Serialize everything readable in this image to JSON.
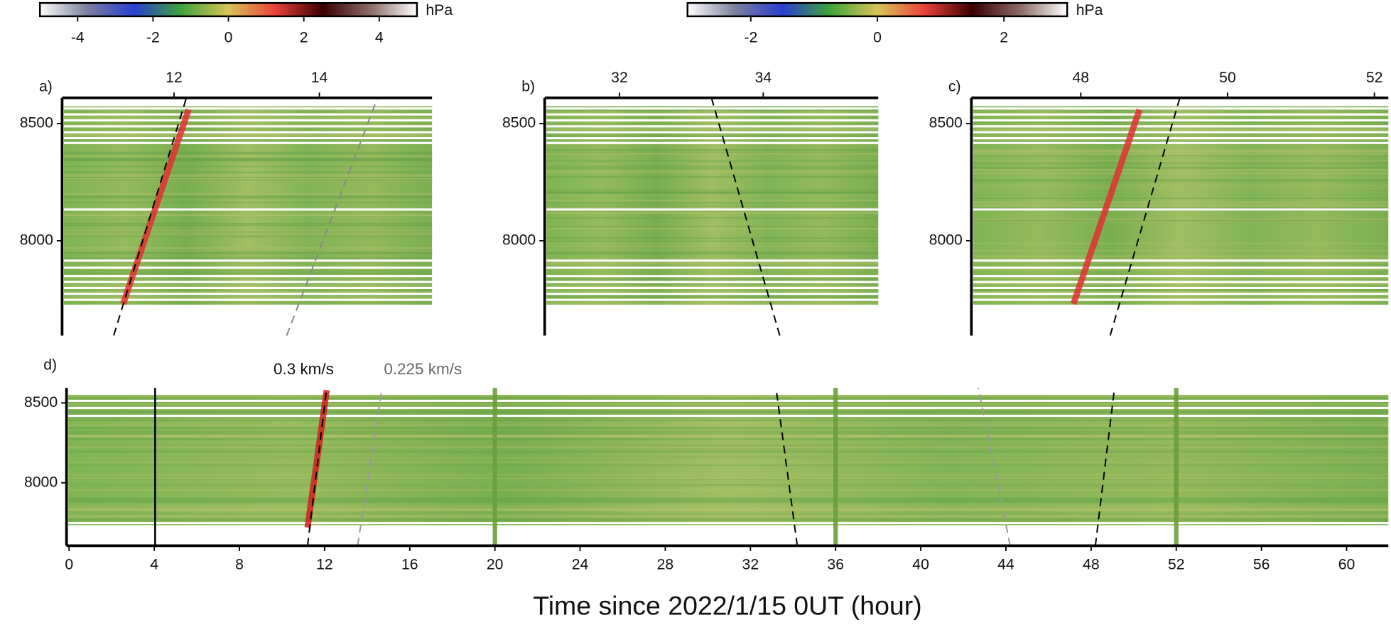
{
  "chart_data": [
    {
      "type": "colorbar",
      "unit": "hPa",
      "lim": [
        -5,
        5
      ],
      "ticks": [
        -4,
        -2,
        0,
        2,
        4
      ],
      "colors": [
        "#ffffff",
        "#7a7f9c",
        "#2a3fd0",
        "#3fa33a",
        "#d8c45a",
        "#e8403a",
        "#3a0000",
        "#8a6a64",
        "#ffffff"
      ]
    },
    {
      "type": "colorbar",
      "unit": "hPa",
      "lim": [
        -3,
        3
      ],
      "ticks": [
        -2,
        0,
        2
      ],
      "colors": [
        "#ffffff",
        "#7a7f9c",
        "#2a3fd0",
        "#3fa33a",
        "#d8c45a",
        "#e8403a",
        "#3a0000",
        "#8a6a64",
        "#ffffff"
      ]
    },
    {
      "type": "heatmap",
      "panel": "a)",
      "xlim": [
        10.46,
        15.55
      ],
      "xticks": [
        12,
        14
      ],
      "ylim": [
        7595,
        8610
      ],
      "yticks": [
        8500,
        8000
      ],
      "lines": [
        {
          "color": "#e03030",
          "style": "band",
          "x": [
            11.3,
            12.2
          ],
          "y": [
            7730,
            8560
          ]
        },
        {
          "color": "#000000",
          "style": "dashed",
          "x": [
            11.17,
            12.17
          ],
          "y": [
            7595,
            8610
          ]
        },
        {
          "color": "#888888",
          "style": "dashed",
          "x": [
            13.55,
            14.8
          ],
          "y": [
            7595,
            8610
          ]
        }
      ]
    },
    {
      "type": "heatmap",
      "panel": "b)",
      "xlim": [
        30.96,
        35.6
      ],
      "xticks": [
        32,
        34
      ],
      "ylim": [
        7595,
        8610
      ],
      "yticks": [
        8500,
        8000
      ],
      "lines": [
        {
          "color": "#000000",
          "style": "dashed",
          "x": [
            34.23,
            33.28
          ],
          "y": [
            7595,
            8610
          ]
        }
      ]
    },
    {
      "type": "heatmap",
      "panel": "c)",
      "xlim": [
        46.51,
        52.19
      ],
      "xticks": [
        48,
        50,
        52
      ],
      "ylim": [
        7595,
        8610
      ],
      "yticks": [
        8500,
        8000
      ],
      "lines": [
        {
          "color": "#e03030",
          "style": "band",
          "x": [
            47.9,
            48.8
          ],
          "y": [
            7730,
            8560
          ]
        },
        {
          "color": "#000000",
          "style": "dashed",
          "x": [
            48.4,
            49.35
          ],
          "y": [
            7595,
            8610
          ]
        }
      ]
    },
    {
      "type": "heatmap",
      "panel": "d)",
      "xlim": [
        -0.12,
        61.96
      ],
      "xticks": [
        0,
        4,
        8,
        12,
        16,
        20,
        24,
        28,
        32,
        36,
        40,
        44,
        48,
        52,
        56,
        60
      ],
      "ylim": [
        7606,
        8594
      ],
      "yticks": [
        8500,
        8000
      ],
      "xlabel": "Time since 2022/1/15 0UT (hour)",
      "annotations": [
        "0.3 km/s",
        "0.225 km/s"
      ],
      "lines": [
        {
          "color": "#000000",
          "style": "solid",
          "x": [
            4.04,
            4.04
          ],
          "y": [
            7606,
            8594
          ]
        },
        {
          "color": "#6a9f3a",
          "style": "wide",
          "x": [
            20,
            20
          ],
          "y": [
            7606,
            8594
          ]
        },
        {
          "color": "#6a9f3a",
          "style": "wide",
          "x": [
            36,
            36
          ],
          "y": [
            7606,
            8594
          ]
        },
        {
          "color": "#6a9f3a",
          "style": "wide",
          "x": [
            52,
            52
          ],
          "y": [
            7606,
            8594
          ]
        },
        {
          "color": "#d02020",
          "style": "band",
          "x": [
            11.2,
            12.1
          ],
          "y": [
            7720,
            8580
          ]
        },
        {
          "color": "#000000",
          "style": "dashed",
          "x": [
            11.2,
            12.1
          ],
          "y": [
            7606,
            8594
          ]
        },
        {
          "color": "#999999",
          "style": "dashed",
          "x": [
            13.55,
            14.7
          ],
          "y": [
            7606,
            8594
          ]
        },
        {
          "color": "#000000",
          "style": "dashed",
          "x": [
            34.2,
            33.2
          ],
          "y": [
            7606,
            8594
          ]
        },
        {
          "color": "#999999",
          "style": "dashed",
          "x": [
            44.2,
            42.7
          ],
          "y": [
            7606,
            8594
          ]
        },
        {
          "color": "#000000",
          "style": "dashed",
          "x": [
            48.2,
            49.1
          ],
          "y": [
            7606,
            8594
          ]
        }
      ]
    }
  ]
}
